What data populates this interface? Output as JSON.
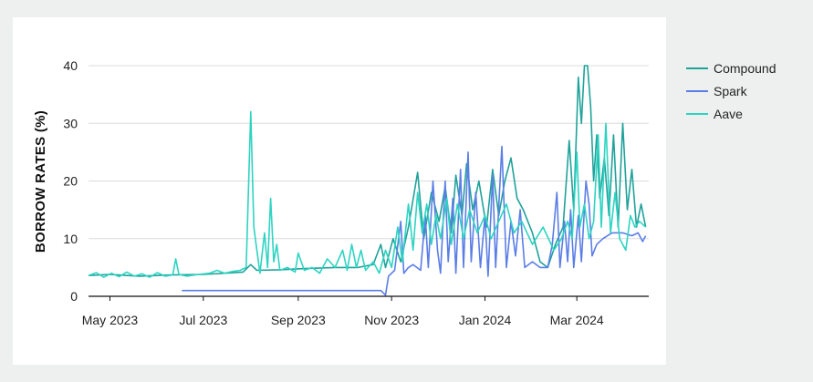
{
  "chart_data": {
    "type": "line",
    "ylabel": "BORROW RATES (%)",
    "xlabel": "",
    "ylim": [
      0,
      40
    ],
    "yticks": [
      0,
      10,
      20,
      30,
      40
    ],
    "xlim": [
      "2023-04-17",
      "2024-04-17"
    ],
    "xticks": [
      {
        "date": "2023-05-01",
        "label": "May 2023"
      },
      {
        "date": "2023-07-01",
        "label": "Jul 2023"
      },
      {
        "date": "2023-09-01",
        "label": "Sep 2023"
      },
      {
        "date": "2023-11-01",
        "label": "Nov 2023"
      },
      {
        "date": "2024-01-01",
        "label": "Jan 2024"
      },
      {
        "date": "2024-03-01",
        "label": "Mar 2024"
      }
    ],
    "grid": "horizontal",
    "legend_position": "right",
    "series": [
      {
        "name": "Compound",
        "color": "#1fa29a",
        "points": [
          [
            "2023-04-17",
            3.6
          ],
          [
            "2023-05-01",
            3.8
          ],
          [
            "2023-05-20",
            3.5
          ],
          [
            "2023-06-10",
            3.7
          ],
          [
            "2023-07-01",
            3.8
          ],
          [
            "2023-07-15",
            4.0
          ],
          [
            "2023-07-27",
            4.2
          ],
          [
            "2023-08-01",
            5.5
          ],
          [
            "2023-08-05",
            4.5
          ],
          [
            "2023-08-20",
            4.6
          ],
          [
            "2023-09-05",
            4.8
          ],
          [
            "2023-09-25",
            5.0
          ],
          [
            "2023-10-10",
            5.0
          ],
          [
            "2023-10-20",
            5.5
          ],
          [
            "2023-10-25",
            9.0
          ],
          [
            "2023-10-28",
            5.0
          ],
          [
            "2023-11-02",
            10.0
          ],
          [
            "2023-11-07",
            6.0
          ],
          [
            "2023-11-12",
            12.0
          ],
          [
            "2023-11-18",
            21.5
          ],
          [
            "2023-11-22",
            10.0
          ],
          [
            "2023-11-27",
            18.0
          ],
          [
            "2023-12-02",
            13.0
          ],
          [
            "2023-12-06",
            19.0
          ],
          [
            "2023-12-10",
            11.0
          ],
          [
            "2023-12-13",
            21.0
          ],
          [
            "2023-12-17",
            14.0
          ],
          [
            "2023-12-20",
            23.0
          ],
          [
            "2023-12-24",
            15.0
          ],
          [
            "2023-12-28",
            20.0
          ],
          [
            "2024-01-02",
            12.0
          ],
          [
            "2024-01-06",
            22.0
          ],
          [
            "2024-01-10",
            14.0
          ],
          [
            "2024-01-14",
            20.0
          ],
          [
            "2024-01-18",
            24.0
          ],
          [
            "2024-01-22",
            17.0
          ],
          [
            "2024-01-26",
            15.0
          ],
          [
            "2024-02-01",
            11.0
          ],
          [
            "2024-02-06",
            6.0
          ],
          [
            "2024-02-11",
            5.0
          ],
          [
            "2024-02-16",
            9.0
          ],
          [
            "2024-02-21",
            12.0
          ],
          [
            "2024-02-25",
            27.0
          ],
          [
            "2024-02-28",
            15.0
          ],
          [
            "2024-03-02",
            38.0
          ],
          [
            "2024-03-04",
            30.0
          ],
          [
            "2024-03-06",
            40.0
          ],
          [
            "2024-03-08",
            40.0
          ],
          [
            "2024-03-10",
            33.0
          ],
          [
            "2024-03-12",
            20.0
          ],
          [
            "2024-03-14",
            28.0
          ],
          [
            "2024-03-16",
            17.0
          ],
          [
            "2024-03-19",
            24.0
          ],
          [
            "2024-03-22",
            14.0
          ],
          [
            "2024-03-25",
            28.0
          ],
          [
            "2024-03-28",
            12.0
          ],
          [
            "2024-03-31",
            30.0
          ],
          [
            "2024-04-03",
            15.0
          ],
          [
            "2024-04-06",
            22.0
          ],
          [
            "2024-04-09",
            12.0
          ],
          [
            "2024-04-12",
            16.0
          ],
          [
            "2024-04-15",
            12.0
          ]
        ]
      },
      {
        "name": "Spark",
        "color": "#5b7ee6",
        "points": [
          [
            "2023-06-17",
            1.0
          ],
          [
            "2023-10-25",
            1.0
          ],
          [
            "2023-10-28",
            0.2
          ],
          [
            "2023-10-30",
            3.5
          ],
          [
            "2023-11-03",
            4.5
          ],
          [
            "2023-11-07",
            13.0
          ],
          [
            "2023-11-09",
            4.0
          ],
          [
            "2023-11-12",
            5.0
          ],
          [
            "2023-11-15",
            5.5
          ],
          [
            "2023-11-20",
            4.5
          ],
          [
            "2023-11-23",
            14.0
          ],
          [
            "2023-11-25",
            5.0
          ],
          [
            "2023-11-28",
            20.0
          ],
          [
            "2023-12-01",
            8.0
          ],
          [
            "2023-12-03",
            4.0
          ],
          [
            "2023-12-06",
            20.0
          ],
          [
            "2023-12-08",
            6.0
          ],
          [
            "2023-12-11",
            17.0
          ],
          [
            "2023-12-13",
            4.0
          ],
          [
            "2023-12-16",
            22.0
          ],
          [
            "2023-12-18",
            5.0
          ],
          [
            "2023-12-21",
            25.0
          ],
          [
            "2023-12-23",
            6.0
          ],
          [
            "2023-12-26",
            18.0
          ],
          [
            "2023-12-29",
            5.0
          ],
          [
            "2024-01-01",
            14.0
          ],
          [
            "2024-01-03",
            3.5
          ],
          [
            "2024-01-06",
            21.0
          ],
          [
            "2024-01-08",
            5.0
          ],
          [
            "2024-01-12",
            26.0
          ],
          [
            "2024-01-15",
            5.0
          ],
          [
            "2024-01-18",
            13.0
          ],
          [
            "2024-01-21",
            7.0
          ],
          [
            "2024-01-24",
            15.0
          ],
          [
            "2024-01-27",
            5.0
          ],
          [
            "2024-02-01",
            6.0
          ],
          [
            "2024-02-06",
            5.0
          ],
          [
            "2024-02-11",
            5.0
          ],
          [
            "2024-02-14",
            9.0
          ],
          [
            "2024-02-17",
            18.0
          ],
          [
            "2024-02-19",
            5.0
          ],
          [
            "2024-02-22",
            13.0
          ],
          [
            "2024-02-24",
            6.0
          ],
          [
            "2024-02-26",
            15.0
          ],
          [
            "2024-02-28",
            5.0
          ],
          [
            "2024-03-02",
            14.0
          ],
          [
            "2024-03-04",
            6.0
          ],
          [
            "2024-03-07",
            20.0
          ],
          [
            "2024-03-09",
            16.0
          ],
          [
            "2024-03-11",
            7.0
          ],
          [
            "2024-03-14",
            9.0
          ],
          [
            "2024-03-18",
            10.0
          ],
          [
            "2024-03-24",
            11.0
          ],
          [
            "2024-03-31",
            11.0
          ],
          [
            "2024-04-06",
            10.5
          ],
          [
            "2024-04-10",
            11.0
          ],
          [
            "2024-04-13",
            9.5
          ],
          [
            "2024-04-15",
            10.5
          ]
        ]
      },
      {
        "name": "Aave",
        "color": "#2dd4c2",
        "points": [
          [
            "2023-04-17",
            3.6
          ],
          [
            "2023-04-22",
            4.1
          ],
          [
            "2023-04-27",
            3.3
          ],
          [
            "2023-05-02",
            4.0
          ],
          [
            "2023-05-07",
            3.4
          ],
          [
            "2023-05-12",
            4.2
          ],
          [
            "2023-05-17",
            3.5
          ],
          [
            "2023-05-22",
            3.9
          ],
          [
            "2023-05-27",
            3.3
          ],
          [
            "2023-06-01",
            4.1
          ],
          [
            "2023-06-06",
            3.5
          ],
          [
            "2023-06-11",
            3.7
          ],
          [
            "2023-06-13",
            6.5
          ],
          [
            "2023-06-15",
            3.8
          ],
          [
            "2023-06-20",
            3.5
          ],
          [
            "2023-06-28",
            3.8
          ],
          [
            "2023-07-05",
            4.0
          ],
          [
            "2023-07-10",
            4.5
          ],
          [
            "2023-07-15",
            4.0
          ],
          [
            "2023-07-20",
            4.3
          ],
          [
            "2023-07-25",
            4.5
          ],
          [
            "2023-07-29",
            5.0
          ],
          [
            "2023-08-01",
            32.0
          ],
          [
            "2023-08-03",
            12.0
          ],
          [
            "2023-08-05",
            8.0
          ],
          [
            "2023-08-07",
            4.0
          ],
          [
            "2023-08-10",
            11.0
          ],
          [
            "2023-08-12",
            5.0
          ],
          [
            "2023-08-14",
            17.0
          ],
          [
            "2023-08-16",
            6.0
          ],
          [
            "2023-08-18",
            9.0
          ],
          [
            "2023-08-20",
            4.5
          ],
          [
            "2023-08-25",
            5.0
          ],
          [
            "2023-08-30",
            4.2
          ],
          [
            "2023-09-01",
            7.5
          ],
          [
            "2023-09-05",
            4.5
          ],
          [
            "2023-09-10",
            5.0
          ],
          [
            "2023-09-15",
            4.0
          ],
          [
            "2023-09-20",
            6.5
          ],
          [
            "2023-09-25",
            5.0
          ],
          [
            "2023-09-30",
            8.0
          ],
          [
            "2023-10-03",
            4.5
          ],
          [
            "2023-10-06",
            9.0
          ],
          [
            "2023-10-09",
            5.0
          ],
          [
            "2023-10-12",
            8.0
          ],
          [
            "2023-10-15",
            4.5
          ],
          [
            "2023-10-20",
            6.0
          ],
          [
            "2023-10-24",
            4.0
          ],
          [
            "2023-10-28",
            8.0
          ],
          [
            "2023-11-01",
            5.0
          ],
          [
            "2023-11-05",
            12.0
          ],
          [
            "2023-11-08",
            6.0
          ],
          [
            "2023-11-12",
            16.0
          ],
          [
            "2023-11-15",
            8.0
          ],
          [
            "2023-11-18",
            18.0
          ],
          [
            "2023-11-21",
            11.0
          ],
          [
            "2023-11-24",
            16.0
          ],
          [
            "2023-11-27",
            9.0
          ],
          [
            "2023-11-30",
            14.0
          ],
          [
            "2023-12-03",
            10.0
          ],
          [
            "2023-12-07",
            17.0
          ],
          [
            "2023-12-10",
            9.0
          ],
          [
            "2023-12-14",
            16.0
          ],
          [
            "2023-12-18",
            10.0
          ],
          [
            "2023-12-22",
            15.0
          ],
          [
            "2023-12-27",
            11.0
          ],
          [
            "2024-01-01",
            14.0
          ],
          [
            "2024-01-05",
            10.0
          ],
          [
            "2024-01-10",
            13.0
          ],
          [
            "2024-01-15",
            16.0
          ],
          [
            "2024-01-20",
            11.0
          ],
          [
            "2024-01-25",
            13.0
          ],
          [
            "2024-02-01",
            9.0
          ],
          [
            "2024-02-08",
            12.0
          ],
          [
            "2024-02-15",
            8.0
          ],
          [
            "2024-02-20",
            10.0
          ],
          [
            "2024-02-24",
            13.0
          ],
          [
            "2024-02-27",
            10.0
          ],
          [
            "2024-03-01",
            25.0
          ],
          [
            "2024-03-03",
            12.0
          ],
          [
            "2024-03-06",
            16.0
          ],
          [
            "2024-03-09",
            10.0
          ],
          [
            "2024-03-12",
            13.0
          ],
          [
            "2024-03-15",
            28.0
          ],
          [
            "2024-03-17",
            12.0
          ],
          [
            "2024-03-20",
            30.0
          ],
          [
            "2024-03-23",
            11.0
          ],
          [
            "2024-03-26",
            18.0
          ],
          [
            "2024-03-29",
            10.0
          ],
          [
            "2024-04-02",
            8.0
          ],
          [
            "2024-04-05",
            14.0
          ],
          [
            "2024-04-08",
            12.0
          ],
          [
            "2024-04-11",
            13.0
          ],
          [
            "2024-04-15",
            12.0
          ]
        ]
      }
    ]
  }
}
